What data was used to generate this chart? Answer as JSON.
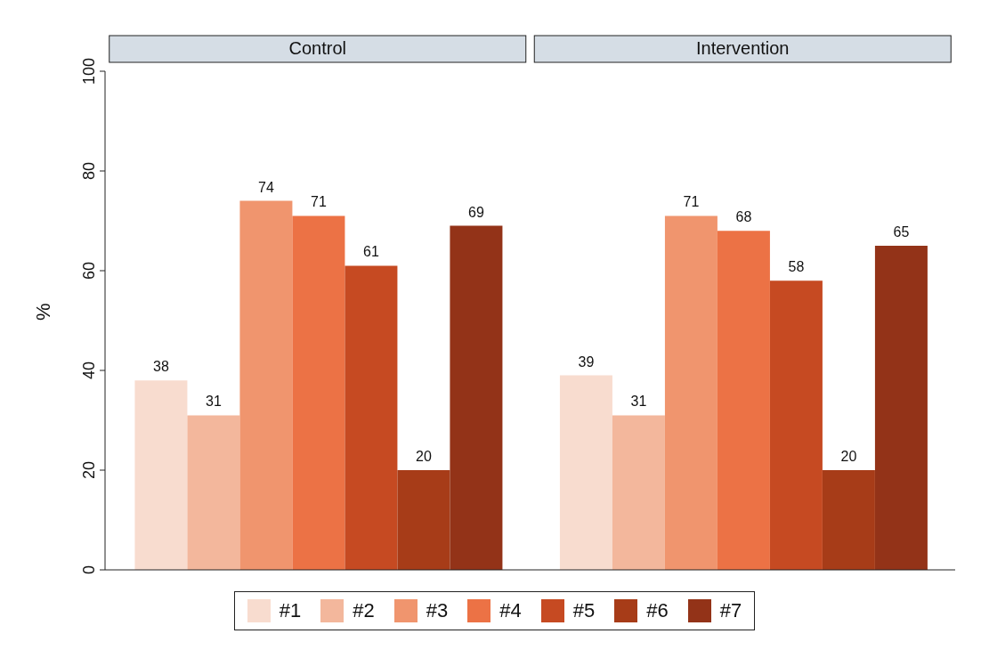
{
  "chart_data": {
    "type": "bar",
    "ylabel": "%",
    "categories": [
      "Control",
      "Intervention"
    ],
    "series": [
      {
        "name": "#1",
        "color": "#f8dccf",
        "values": [
          38,
          39
        ]
      },
      {
        "name": "#2",
        "color": "#f3b79c",
        "values": [
          31,
          31
        ]
      },
      {
        "name": "#3",
        "color": "#f0956e",
        "values": [
          74,
          71
        ]
      },
      {
        "name": "#4",
        "color": "#ec7245",
        "values": [
          71,
          68
        ]
      },
      {
        "name": "#5",
        "color": "#c64a22",
        "values": [
          61,
          58
        ]
      },
      {
        "name": "#6",
        "color": "#a73c18",
        "values": [
          20,
          20
        ]
      },
      {
        "name": "#7",
        "color": "#933318",
        "values": [
          69,
          65
        ]
      }
    ],
    "ylim": [
      0,
      100
    ],
    "yticks": [
      0,
      20,
      40,
      60,
      80,
      100
    ],
    "data_labels": true,
    "legend": "bottom",
    "grid": false
  }
}
